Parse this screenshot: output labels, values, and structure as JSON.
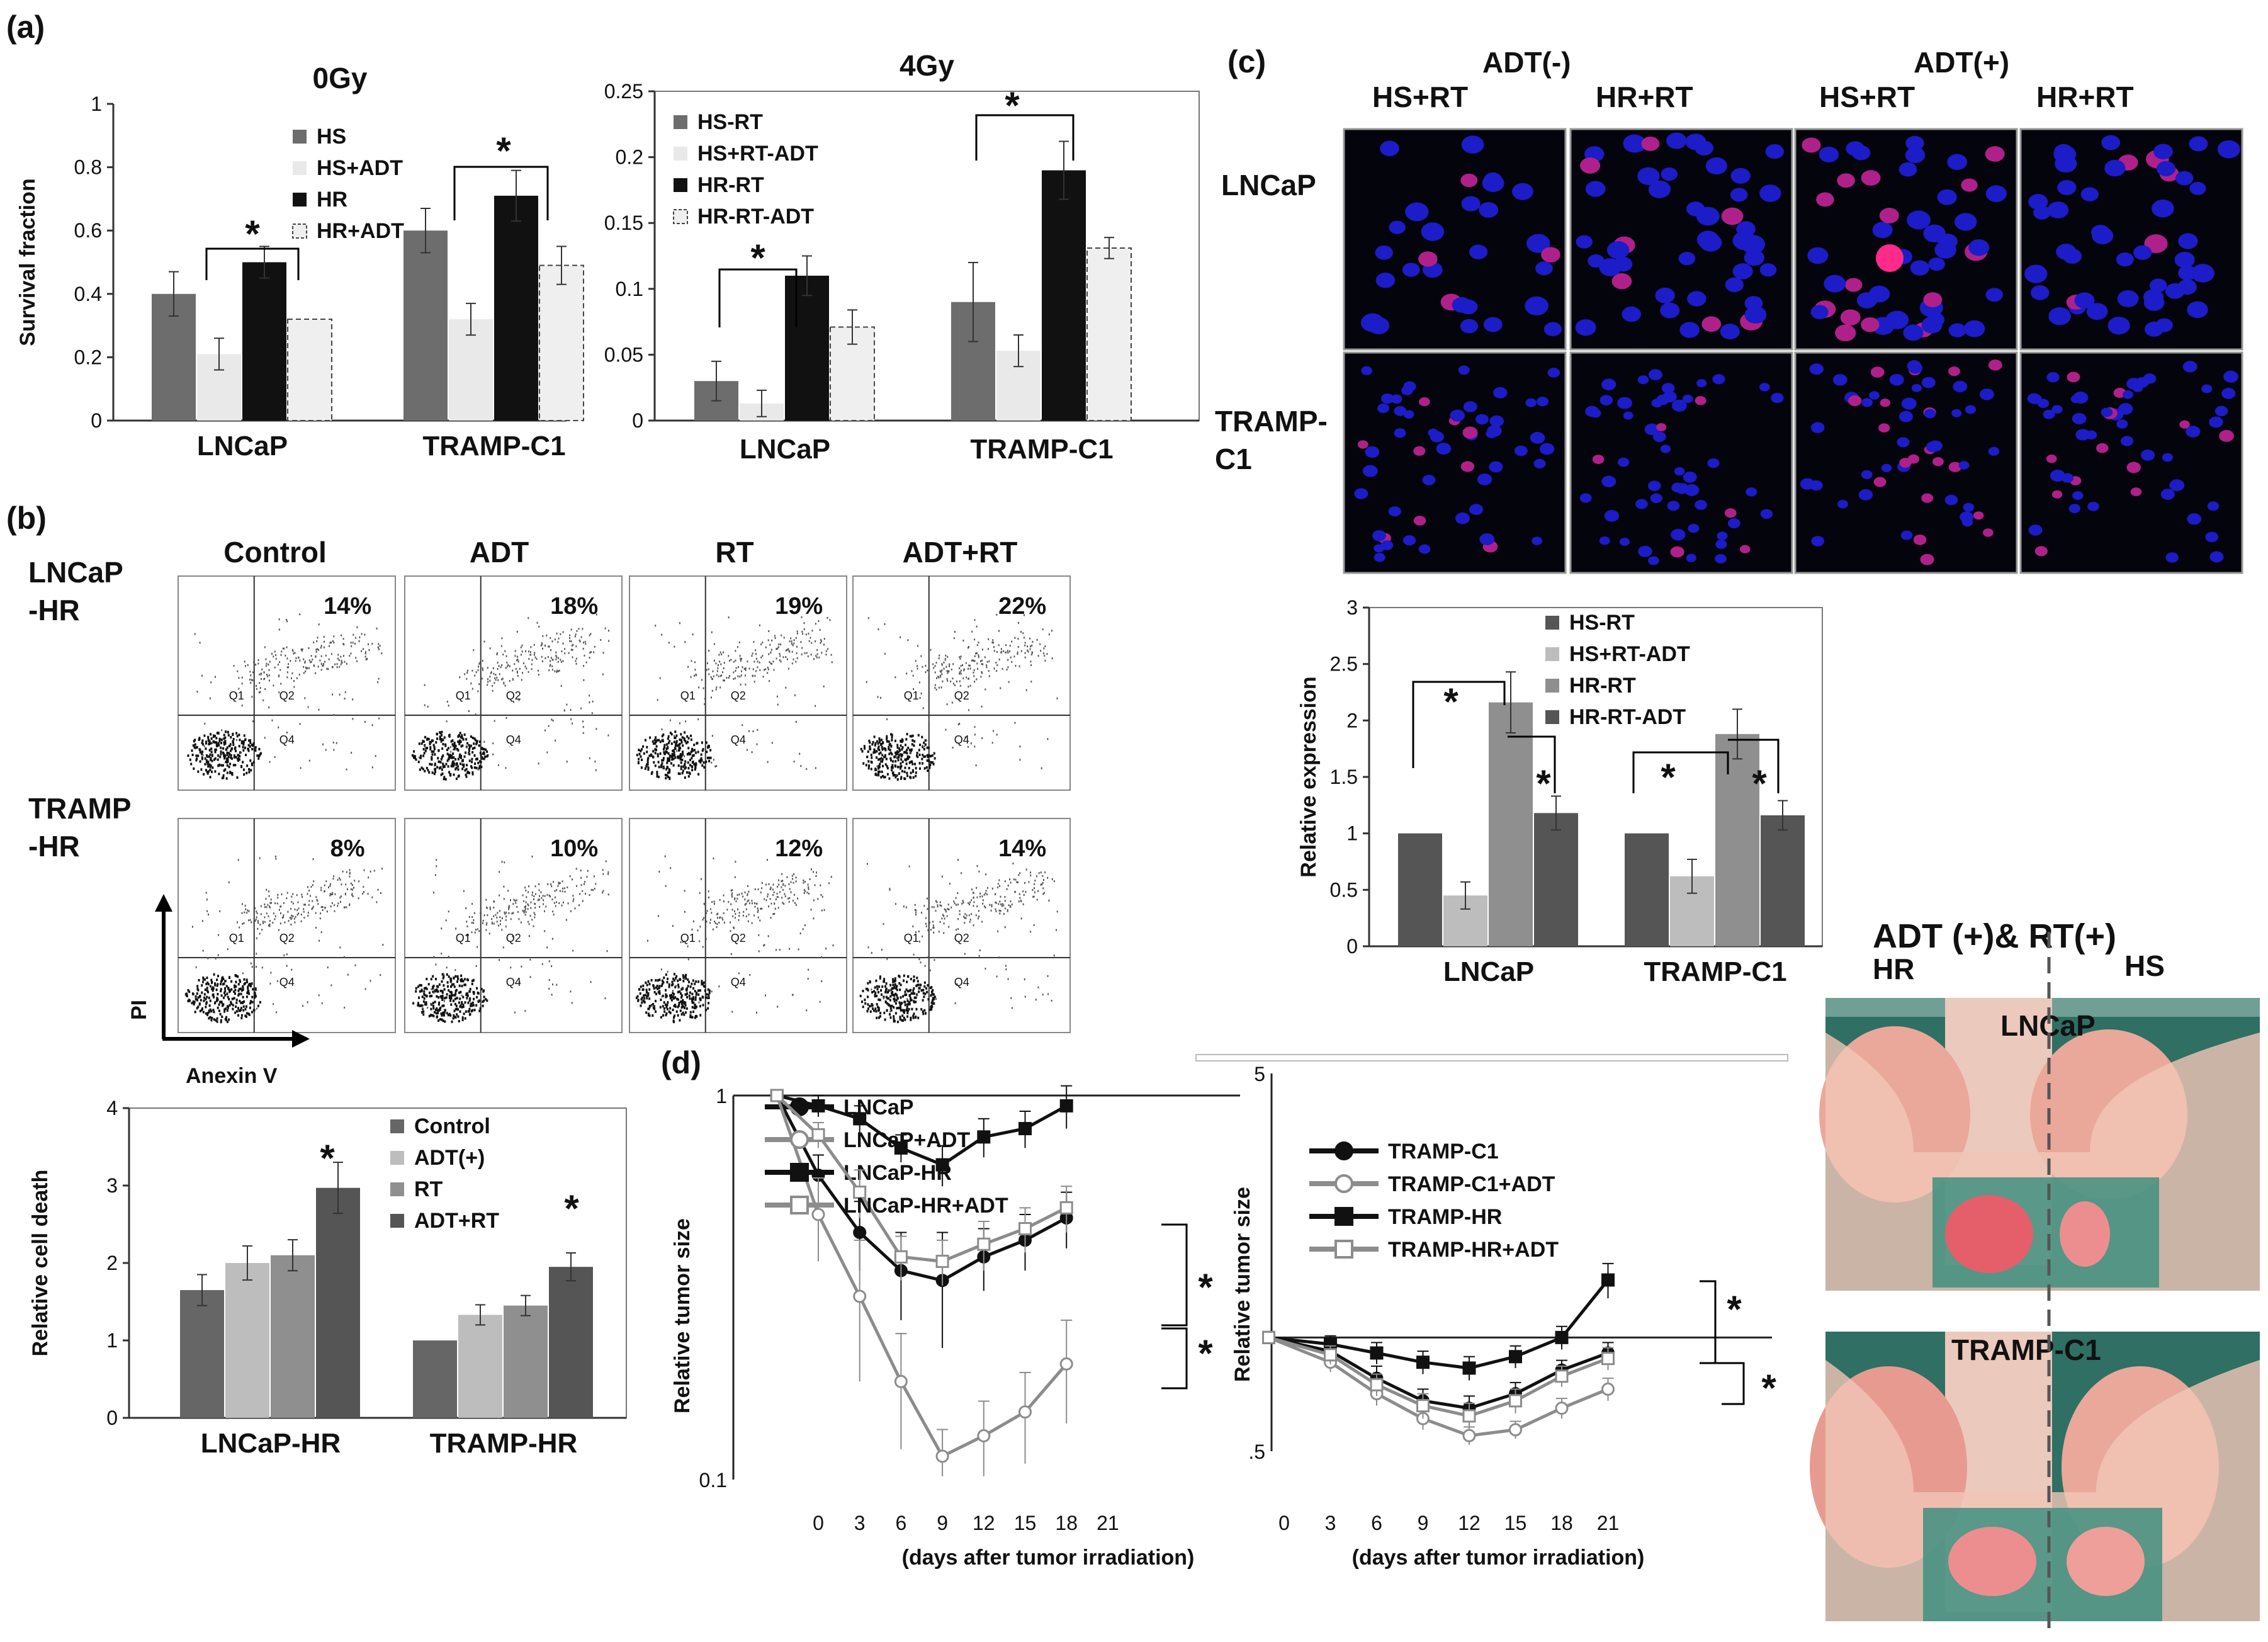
{
  "panel_labels": {
    "a": "(a)",
    "b": "(b)",
    "c": "(c)",
    "d": "(d)"
  },
  "colors": {
    "hs": "#6d6d6d",
    "hs_adt": "#e9e9e9",
    "hr": "#111111",
    "hr_adt": "#efefef",
    "c_control": "#666666",
    "c_adt": "#bdbdbd",
    "c_rt": "#8f8f8f",
    "c_adtrt": "#555555"
  },
  "chart_data": [
    {
      "id": "a_0gy",
      "type": "bar",
      "title": "0Gy",
      "xlabel": "",
      "ylabel": "Survival fraction",
      "ylim": [
        0,
        1
      ],
      "yticks": [
        "0",
        "0.2",
        "0.4",
        "0.6",
        "0.8",
        "1"
      ],
      "categories": [
        "LNCaP",
        "TRAMP-C1"
      ],
      "series": [
        {
          "name": "HS",
          "values": [
            0.4,
            0.6
          ],
          "errors": [
            0.07,
            0.07
          ]
        },
        {
          "name": "HS+ADT",
          "values": [
            0.21,
            0.32
          ],
          "errors": [
            0.05,
            0.05
          ]
        },
        {
          "name": "HR",
          "values": [
            0.5,
            0.71
          ],
          "errors": [
            0.05,
            0.08
          ]
        },
        {
          "name": "HR+ADT",
          "values": [
            0.32,
            0.49
          ],
          "errors": [
            0.0,
            0.06
          ]
        }
      ],
      "significance": [
        "*",
        "*"
      ]
    },
    {
      "id": "a_4gy",
      "type": "bar",
      "title": "4Gy",
      "xlabel": "",
      "ylabel": "",
      "ylim": [
        0,
        0.25
      ],
      "yticks": [
        "0",
        "0.05",
        "0.1",
        "0.15",
        "0.2",
        "0.25"
      ],
      "categories": [
        "LNCaP",
        "TRAMP-C1"
      ],
      "series": [
        {
          "name": "HS-RT",
          "values": [
            0.03,
            0.09
          ],
          "errors": [
            0.015,
            0.03
          ]
        },
        {
          "name": "HS+RT-ADT",
          "values": [
            0.013,
            0.053
          ],
          "errors": [
            0.01,
            0.012
          ]
        },
        {
          "name": "HR-RT",
          "values": [
            0.11,
            0.19
          ],
          "errors": [
            0.015,
            0.022
          ]
        },
        {
          "name": "HR-RT-ADT",
          "values": [
            0.071,
            0.131
          ],
          "errors": [
            0.013,
            0.008
          ]
        }
      ],
      "significance": [
        "*",
        "*"
      ]
    },
    {
      "id": "b_death",
      "type": "bar",
      "title": "",
      "xlabel": "",
      "ylabel": "Relative cell death",
      "ylim": [
        0,
        4
      ],
      "yticks": [
        "0",
        "1",
        "2",
        "3",
        "4"
      ],
      "categories": [
        "LNCaP-HR",
        "TRAMP-HR"
      ],
      "series": [
        {
          "name": "Control",
          "values": [
            1.65,
            1.0
          ],
          "errors": [
            0.2,
            0.0
          ]
        },
        {
          "name": "ADT(+)",
          "values": [
            2.0,
            1.33
          ],
          "errors": [
            0.22,
            0.13
          ]
        },
        {
          "name": "RT",
          "values": [
            2.1,
            1.45
          ],
          "errors": [
            0.2,
            0.13
          ]
        },
        {
          "name": "ADT+RT",
          "values": [
            2.97,
            1.95
          ],
          "errors": [
            0.33,
            0.18
          ]
        }
      ],
      "significance": [
        "*",
        "*"
      ]
    },
    {
      "id": "c_expr",
      "type": "bar",
      "title": "",
      "xlabel": "",
      "ylabel": "Relative expression",
      "ylim": [
        0,
        3
      ],
      "yticks": [
        "0",
        "0.5",
        "1",
        "1.5",
        "2",
        "2.5",
        "3"
      ],
      "categories": [
        "LNCaP",
        "TRAMP-C1"
      ],
      "series": [
        {
          "name": "HS-RT",
          "values": [
            1.0,
            1.0
          ],
          "errors": [
            0.0,
            0.0
          ]
        },
        {
          "name": "HS+RT-ADT",
          "values": [
            0.45,
            0.62
          ],
          "errors": [
            0.12,
            0.15
          ]
        },
        {
          "name": "HR-RT",
          "values": [
            2.16,
            1.88
          ],
          "errors": [
            0.27,
            0.22
          ]
        },
        {
          "name": "HR-RT-ADT",
          "values": [
            1.18,
            1.16
          ],
          "errors": [
            0.15,
            0.13
          ]
        }
      ],
      "significance": [
        "*",
        "*",
        "*",
        "*"
      ]
    },
    {
      "id": "d_lncap",
      "type": "line",
      "title": "",
      "xlabel": "(days after tumor irradiation)",
      "ylabel": "Relative tumor size",
      "yscale": "log",
      "ylim": [
        0.1,
        1
      ],
      "yticks": [
        "1",
        "0.1"
      ],
      "xticks": [
        "0",
        "3",
        "6",
        "9",
        "12",
        "15",
        "18",
        "21"
      ],
      "x": [
        -3,
        0,
        3,
        6,
        9,
        12,
        15,
        18
      ],
      "series": [
        {
          "name": "LNCaP",
          "values": [
            1.0,
            0.62,
            0.44,
            0.35,
            0.33,
            0.38,
            0.42,
            0.48
          ],
          "errors": [
            0,
            0.08,
            0.09,
            0.09,
            0.11,
            0.07,
            0.07,
            0.08
          ]
        },
        {
          "name": "LNCaP+ADT",
          "values": [
            1.0,
            0.49,
            0.3,
            0.18,
            0.115,
            0.13,
            0.15,
            0.2
          ],
          "errors": [
            0,
            0.12,
            0.12,
            0.06,
            0.02,
            0.03,
            0.04,
            0.06
          ]
        },
        {
          "name": "LNCaP-HR",
          "values": [
            1.0,
            0.94,
            0.87,
            0.73,
            0.66,
            0.78,
            0.82,
            0.94
          ],
          "errors": [
            0,
            0.06,
            0.07,
            0.06,
            0.08,
            0.09,
            0.09,
            0.12
          ]
        },
        {
          "name": "LNCaP-HR+ADT",
          "values": [
            1.0,
            0.79,
            0.56,
            0.38,
            0.37,
            0.41,
            0.45,
            0.51
          ],
          "errors": [
            0,
            0.06,
            0.08,
            0.05,
            0.05,
            0.06,
            0.06,
            0.07
          ]
        }
      ],
      "significance": [
        "*",
        "*"
      ]
    },
    {
      "id": "d_tramp",
      "type": "line",
      "title": "",
      "xlabel": "(days after tumor irradiation)",
      "ylabel": "Relative tumor size",
      "yscale": "log",
      "ylim": [
        0.5,
        5
      ],
      "yticks": [
        "5",
        ".5"
      ],
      "xticks": [
        "0",
        "3",
        "6",
        "9",
        "12",
        "15",
        "18",
        "21"
      ],
      "x": [
        -1,
        3,
        6,
        9,
        12,
        15,
        18,
        21
      ],
      "series": [
        {
          "name": "TRAMP-C1",
          "values": [
            1.0,
            0.92,
            0.78,
            0.68,
            0.65,
            0.71,
            0.82,
            0.91
          ],
          "errors": [
            0,
            0.05,
            0.06,
            0.05,
            0.05,
            0.05,
            0.05,
            0.06
          ]
        },
        {
          "name": "TRAMP-C1+ADT",
          "values": [
            1.0,
            0.86,
            0.71,
            0.61,
            0.55,
            0.57,
            0.65,
            0.73
          ],
          "errors": [
            0,
            0.05,
            0.05,
            0.04,
            0.03,
            0.03,
            0.04,
            0.05
          ]
        },
        {
          "name": "TRAMP-HR",
          "values": [
            1.0,
            0.96,
            0.91,
            0.86,
            0.83,
            0.89,
            1.0,
            1.42
          ],
          "errors": [
            0,
            0.05,
            0.06,
            0.06,
            0.06,
            0.06,
            0.07,
            0.15
          ]
        },
        {
          "name": "TRAMP-HR+ADT",
          "values": [
            1.0,
            0.9,
            0.75,
            0.66,
            0.62,
            0.68,
            0.79,
            0.88
          ],
          "errors": [
            0,
            0.05,
            0.05,
            0.05,
            0.05,
            0.05,
            0.05,
            0.06
          ]
        }
      ],
      "significance": [
        "*",
        "*"
      ]
    }
  ],
  "flow": {
    "columns": [
      "Control",
      "ADT",
      "RT",
      "ADT+RT"
    ],
    "rows": [
      {
        "label1": "LNCaP",
        "label2": "-HR",
        "percents": [
          "14%",
          "18%",
          "19%",
          "22%"
        ]
      },
      {
        "label1": "TRAMP",
        "label2": "-HR",
        "percents": [
          "8%",
          "10%",
          "12%",
          "14%"
        ]
      }
    ],
    "quadrants": [
      "Q1",
      "Q2",
      "Q4"
    ],
    "y_axis": "PI",
    "x_axis": "Anexin V"
  },
  "micro": {
    "group_labels": [
      "ADT(-)",
      "ADT(+)"
    ],
    "columns": [
      "HS+RT",
      "HR+RT",
      "HS+RT",
      "HR+RT"
    ],
    "rows": [
      {
        "label1": "LNCaP",
        "label2": ""
      },
      {
        "label1": "TRAMP-",
        "label2": "C1"
      }
    ]
  },
  "photo": {
    "title": "ADT (+)& RT(+)",
    "left": "HR",
    "right": "HS",
    "labels": [
      "LNCaP",
      "TRAMP-C1"
    ]
  }
}
